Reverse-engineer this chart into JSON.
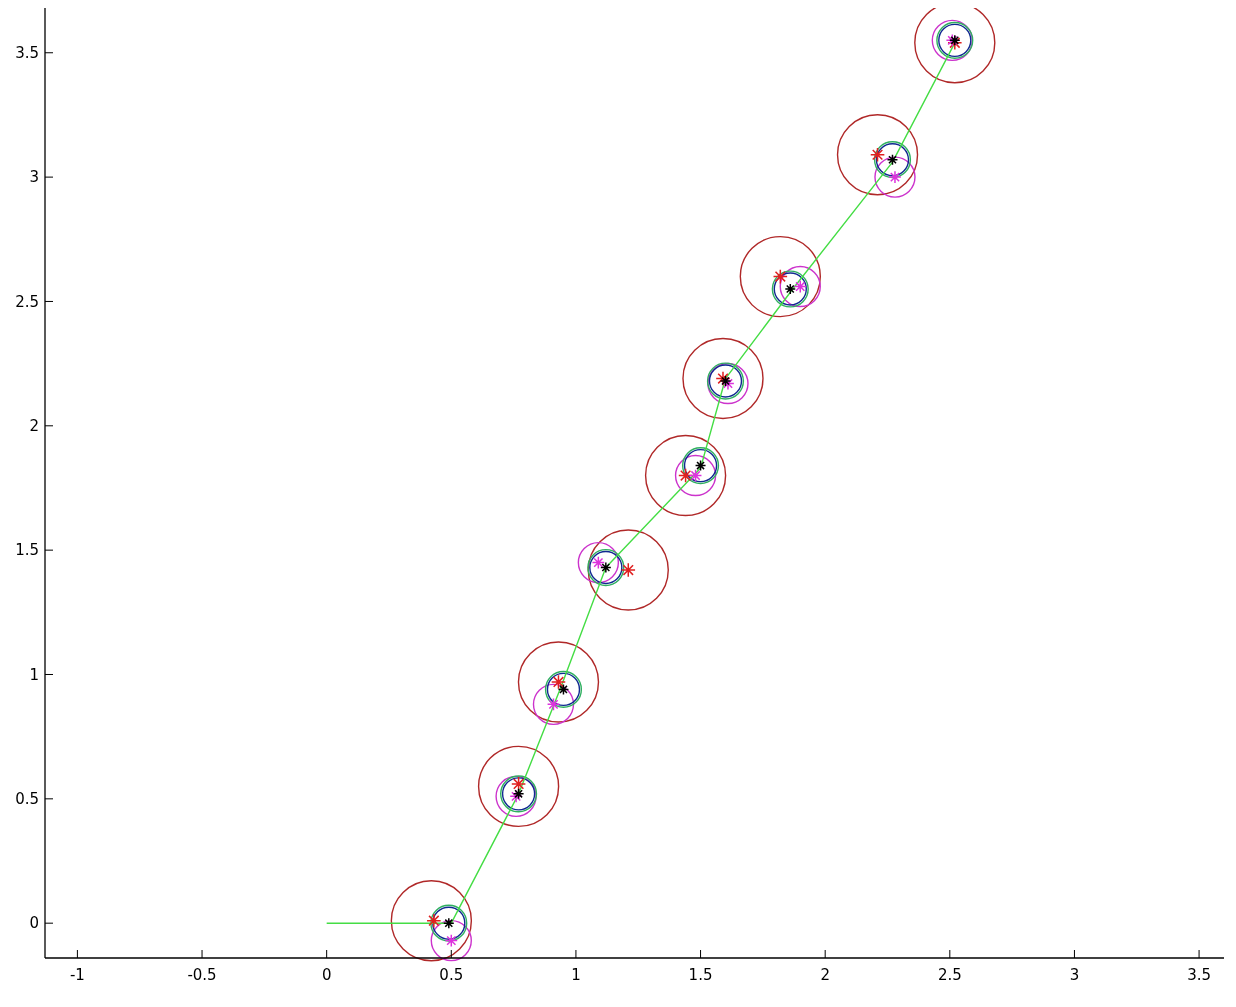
{
  "chart_data": {
    "type": "scatter",
    "xlim": [
      -1.13,
      3.6
    ],
    "ylim": [
      -0.14,
      3.68
    ],
    "xticks": [
      -1,
      -0.5,
      0,
      0.5,
      1,
      1.5,
      2,
      2.5,
      3,
      3.5
    ],
    "yticks": [
      0,
      0.5,
      1,
      1.5,
      2,
      2.5,
      3,
      3.5
    ],
    "grid": false,
    "series": [
      {
        "type": "bubble",
        "color": "#b02828",
        "x": [
          0.42,
          0.77,
          0.93,
          1.21,
          1.44,
          1.59,
          1.82,
          2.21,
          2.52
        ],
        "values": [
          0.01,
          0.55,
          0.97,
          1.42,
          1.8,
          2.19,
          2.6,
          3.09,
          3.54
        ],
        "sizes": [
          1,
          1,
          1,
          1,
          1,
          1,
          1,
          1,
          1
        ]
      },
      {
        "type": "bubble",
        "color": "#cc33cc",
        "x": [
          0.5,
          0.76,
          0.91,
          1.09,
          1.48,
          1.61,
          1.9,
          2.28,
          2.51
        ],
        "values": [
          -0.07,
          0.51,
          0.88,
          1.45,
          1.8,
          2.17,
          2.56,
          3.0,
          3.55
        ],
        "sizes": [
          0.25,
          0.25,
          0.25,
          0.25,
          0.25,
          0.25,
          0.25,
          0.25,
          0.25
        ]
      },
      {
        "type": "bubble",
        "color": "#30b060",
        "x": [
          0.49,
          0.77,
          0.95,
          1.12,
          1.5,
          1.6,
          1.86,
          2.27,
          2.52
        ],
        "values": [
          0.0,
          0.52,
          0.94,
          1.43,
          1.84,
          2.18,
          2.55,
          3.07,
          3.55
        ],
        "sizes": [
          0.2,
          0.2,
          0.2,
          0.2,
          0.2,
          0.2,
          0.2,
          0.2,
          0.2
        ]
      },
      {
        "type": "bubble",
        "color": "#102a90",
        "x": [
          0.49,
          0.77,
          0.95,
          1.12,
          1.5,
          1.6,
          1.86,
          2.27,
          2.52
        ],
        "values": [
          0.0,
          0.52,
          0.94,
          1.43,
          1.84,
          2.18,
          2.55,
          3.07,
          3.55
        ],
        "sizes": [
          0.16,
          0.16,
          0.16,
          0.16,
          0.16,
          0.16,
          0.16,
          0.16,
          0.16
        ]
      },
      {
        "type": "line",
        "color": "#44dd44",
        "x": [
          0,
          0.5,
          0.77,
          0.94,
          1.12,
          1.5,
          1.6,
          1.87,
          2.27,
          2.52
        ],
        "values": [
          0,
          0,
          0.52,
          0.95,
          1.43,
          1.83,
          2.19,
          2.55,
          3.06,
          3.54
        ]
      },
      {
        "type": "scatter",
        "marker": "cross",
        "color": "#e02020",
        "x": [
          0.43,
          0.77,
          0.93,
          1.21,
          1.44,
          1.59,
          1.82,
          2.21,
          2.52
        ],
        "values": [
          0.01,
          0.56,
          0.97,
          1.42,
          1.8,
          2.19,
          2.6,
          3.09,
          3.54
        ]
      },
      {
        "type": "scatter",
        "marker": "cross",
        "color": "#dd33dd",
        "x": [
          0.5,
          0.76,
          0.91,
          1.09,
          1.48,
          1.61,
          1.9,
          2.28,
          2.51
        ],
        "values": [
          -0.07,
          0.51,
          0.88,
          1.45,
          1.8,
          2.17,
          2.56,
          3.0,
          3.55
        ]
      },
      {
        "marker": "cross",
        "color": "#000000",
        "x": [
          0.49,
          0.77,
          0.95,
          1.12,
          1.5,
          1.6,
          1.86,
          2.27,
          2.52
        ],
        "values": [
          0.0,
          0.52,
          0.94,
          1.43,
          1.84,
          2.18,
          2.55,
          3.07,
          3.55
        ]
      }
    ]
  }
}
